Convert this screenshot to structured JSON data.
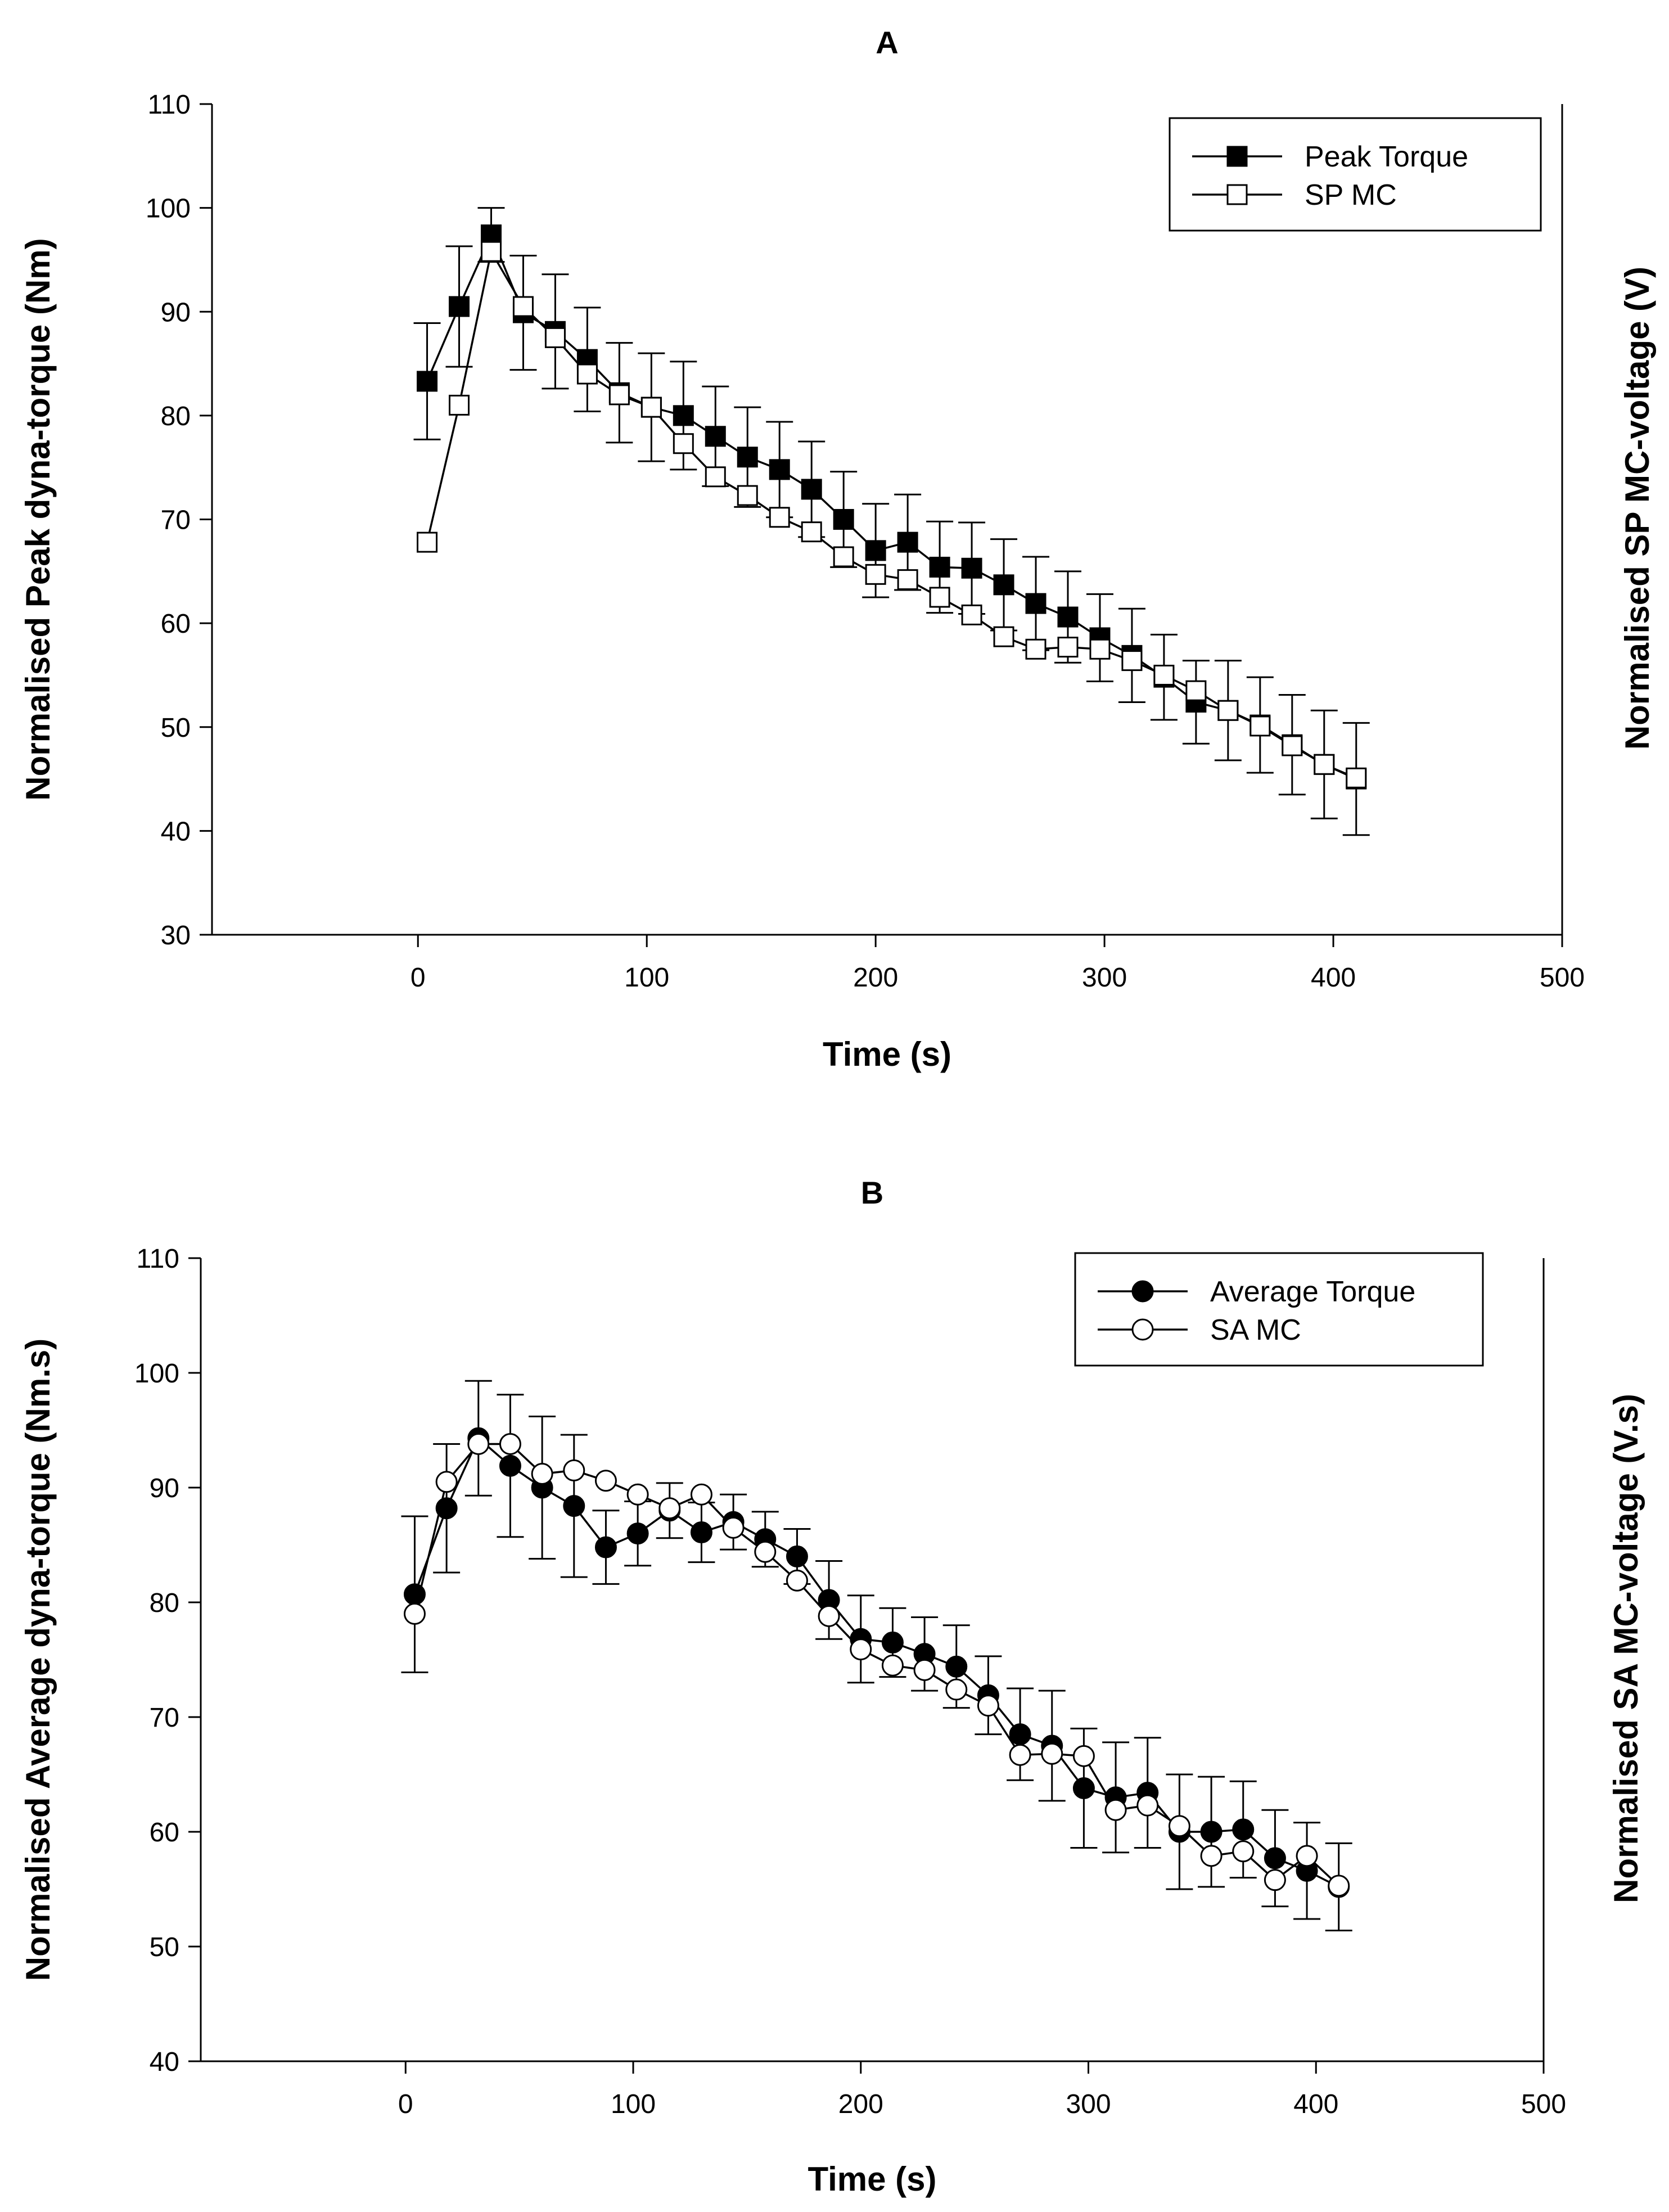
{
  "chart_data": [
    {
      "type": "line",
      "title": "A",
      "xlabel": "Time (s)",
      "ylabel": "Normalised Peak dyna-torque (Nm)",
      "y2label": "Normalised SP MC-voltage (V)",
      "xlim": [
        -90,
        500
      ],
      "ylim": [
        30,
        110
      ],
      "xticks": [
        0,
        100,
        200,
        300,
        400,
        500
      ],
      "yticks": [
        30,
        40,
        50,
        60,
        70,
        80,
        90,
        100,
        110
      ],
      "legend_position": "top-right",
      "error_bars": true,
      "series": [
        {
          "name": "Peak Torque",
          "marker": "filled-square",
          "x": [
            4,
            18,
            32,
            46,
            60,
            74,
            88,
            102,
            116,
            130,
            144,
            158,
            172,
            186,
            200,
            214,
            228,
            242,
            256,
            270,
            284,
            298,
            312,
            326,
            340,
            354,
            368,
            382,
            396,
            410
          ],
          "y": [
            83.3,
            90.5,
            97.4,
            89.9,
            88.1,
            85.4,
            82.2,
            80.8,
            80.0,
            78.0,
            76.0,
            74.8,
            72.9,
            70.0,
            67.0,
            67.8,
            65.4,
            65.3,
            63.7,
            61.9,
            60.6,
            58.6,
            56.9,
            54.8,
            52.4,
            51.6,
            50.2,
            48.3,
            46.4,
            45.0
          ],
          "err": [
            5.6,
            5.8,
            2.6,
            5.5,
            5.5,
            5.0,
            4.8,
            5.2,
            5.2,
            4.8,
            4.8,
            4.6,
            4.6,
            4.6,
            4.5,
            4.6,
            4.4,
            4.4,
            4.4,
            4.5,
            4.4,
            4.2,
            4.5,
            4.1,
            4.0,
            4.8,
            4.6,
            4.8,
            5.2,
            5.4
          ]
        },
        {
          "name": "SP MC",
          "marker": "open-square",
          "x": [
            4,
            18,
            32,
            46,
            60,
            74,
            88,
            102,
            116,
            130,
            144,
            158,
            172,
            186,
            200,
            214,
            228,
            242,
            256,
            270,
            284,
            298,
            312,
            326,
            340,
            354,
            368,
            382,
            396,
            410
          ],
          "y": [
            67.8,
            81.0,
            95.8,
            90.5,
            87.5,
            84.0,
            82.0,
            80.8,
            77.3,
            74.1,
            72.3,
            70.2,
            68.8,
            66.4,
            64.7,
            64.2,
            62.5,
            60.8,
            58.7,
            57.5,
            57.7,
            57.5,
            56.4,
            55.0,
            53.5,
            51.6,
            50.1,
            48.2,
            46.4,
            45.1
          ]
        }
      ]
    },
    {
      "type": "line",
      "title": "B",
      "xlabel": "Time (s)",
      "ylabel": "Normalised Average dyna-torque (Nm.s)",
      "y2label": "Normalised SA MC-voltage (V.s)",
      "xlim": [
        -90,
        500
      ],
      "ylim": [
        40,
        110
      ],
      "xticks": [
        0,
        100,
        200,
        300,
        400,
        500
      ],
      "yticks": [
        40,
        50,
        60,
        70,
        80,
        90,
        100,
        110
      ],
      "legend_position": "top-right",
      "error_bars": true,
      "series": [
        {
          "name": "Average Torque",
          "marker": "filled-circle",
          "x": [
            4,
            18,
            32,
            46,
            60,
            74,
            88,
            102,
            116,
            130,
            144,
            158,
            172,
            186,
            200,
            214,
            228,
            242,
            256,
            270,
            284,
            298,
            312,
            326,
            340,
            354,
            368,
            382,
            396,
            410
          ],
          "y": [
            80.7,
            88.2,
            94.3,
            91.9,
            90.0,
            88.4,
            84.8,
            86.0,
            88.0,
            86.1,
            87.0,
            85.5,
            84.0,
            80.2,
            76.8,
            76.5,
            75.5,
            74.4,
            71.9,
            68.5,
            67.5,
            63.8,
            63.0,
            63.4,
            60.0,
            60.0,
            60.2,
            57.7,
            56.6,
            55.2
          ],
          "err": [
            6.8,
            5.6,
            5.0,
            6.2,
            6.2,
            6.2,
            3.2,
            2.8,
            2.4,
            2.6,
            2.4,
            2.4,
            2.4,
            3.4,
            3.8,
            3.0,
            3.2,
            3.6,
            3.4,
            4.0,
            4.8,
            5.2,
            4.8,
            4.8,
            5.0,
            4.8,
            4.2,
            4.2,
            4.2,
            3.8
          ]
        },
        {
          "name": "SA MC",
          "marker": "open-circle",
          "x": [
            4,
            18,
            32,
            46,
            60,
            74,
            88,
            102,
            116,
            130,
            144,
            158,
            172,
            186,
            200,
            214,
            228,
            242,
            256,
            270,
            284,
            298,
            312,
            326,
            340,
            354,
            368,
            382,
            396,
            410
          ],
          "y": [
            79.0,
            90.5,
            93.8,
            93.8,
            91.2,
            91.5,
            90.6,
            89.4,
            88.2,
            89.4,
            86.5,
            84.4,
            81.9,
            78.8,
            75.9,
            74.5,
            74.1,
            72.4,
            71.0,
            66.7,
            66.8,
            66.6,
            61.9,
            62.3,
            60.5,
            57.9,
            58.3,
            55.8,
            57.9,
            55.3
          ]
        }
      ]
    }
  ]
}
